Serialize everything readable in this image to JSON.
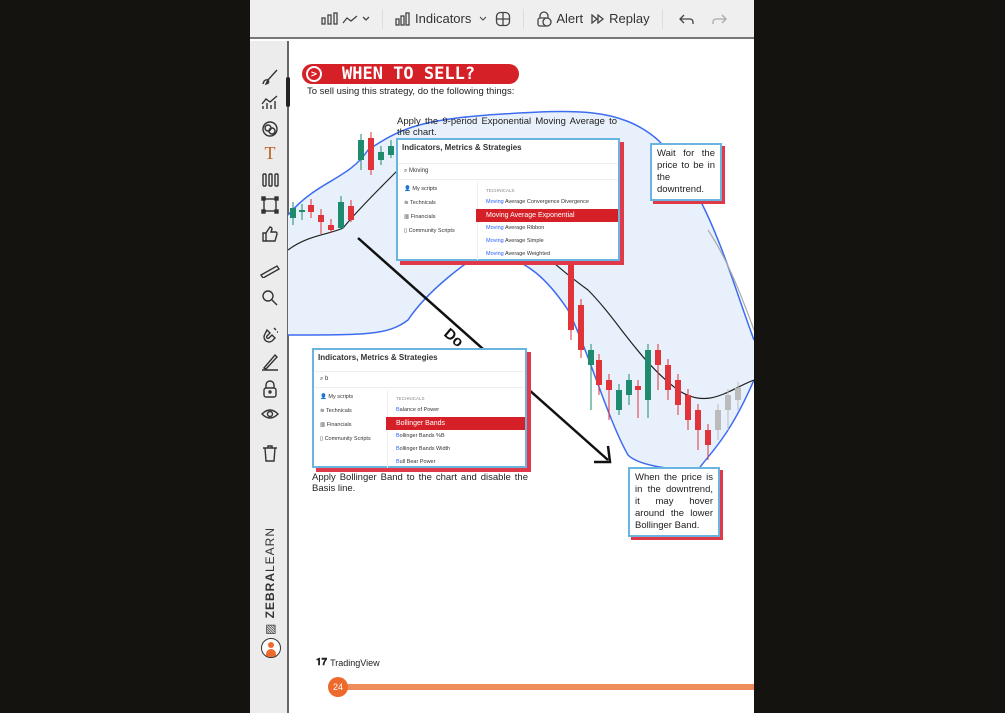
{
  "toolbar": {
    "indicators_label": "Indicators",
    "alert_label": "Alert",
    "replay_label": "Replay"
  },
  "sidebar": {
    "icons": [
      "brush-icon",
      "chart-patterns-icon",
      "pie-icon",
      "text-icon",
      "candles-icon",
      "rectangle-icon",
      "thumbs-up-icon",
      "ruler-icon",
      "zoom-icon",
      "magnet-icon",
      "pencil-icon",
      "lock-icon",
      "eye-icon",
      "trash-icon"
    ],
    "brand_bold": "ZEBRA",
    "brand_light": "LEARN"
  },
  "page": {
    "title": "WHEN TO SELL?",
    "subtitle": "To sell using this strategy, do the following things:",
    "step1": "Apply the 9-period Exponential Moving Average to the chart.",
    "step2": "Apply Bollinger Band to the chart and disable the Basis line.",
    "note1": "Wait for the price to be in the downtrend.",
    "note2": "When the price is in the downtrend, it may hover around the lower Bollinger Band.",
    "arrow_label": "Do",
    "footer_logo": "TradingView",
    "page_number": "24"
  },
  "popup1": {
    "title": "Indicators, Metrics & Strategies",
    "search": "Moving",
    "categories": [
      "My scripts",
      "Technicals",
      "Financials",
      "Community Scripts"
    ],
    "section": "TECHNICALS",
    "results": [
      {
        "hl": "Moving",
        "rest": " Average Convergence Divergence"
      },
      {
        "hl": "",
        "rest": "Moving Average Exponential",
        "selected": true
      },
      {
        "hl": "Moving",
        "rest": " Average Ribbon"
      },
      {
        "hl": "Moving",
        "rest": " Average Simple"
      },
      {
        "hl": "Moving",
        "rest": " Average Weighted"
      }
    ]
  },
  "popup2": {
    "title": "Indicators, Metrics & Strategies",
    "search": "b",
    "categories": [
      "My scripts",
      "Technicals",
      "Financials",
      "Community Scripts"
    ],
    "section": "TECHNICALS",
    "results": [
      {
        "hl": "B",
        "rest": "alance of Power"
      },
      {
        "hl": "",
        "rest": "Bollinger Bands",
        "selected": true
      },
      {
        "hl": "B",
        "rest": "ollinger Bands %B"
      },
      {
        "hl": "B",
        "rest": "ollinger Bands Width"
      },
      {
        "hl": "B",
        "rest": "ull Bear Power"
      }
    ]
  },
  "colors": {
    "accent_red": "#d62027",
    "up": "#1e8a6e",
    "down": "#e0343a",
    "band": "#3d6cf0",
    "progress": "#ee6a2c"
  }
}
